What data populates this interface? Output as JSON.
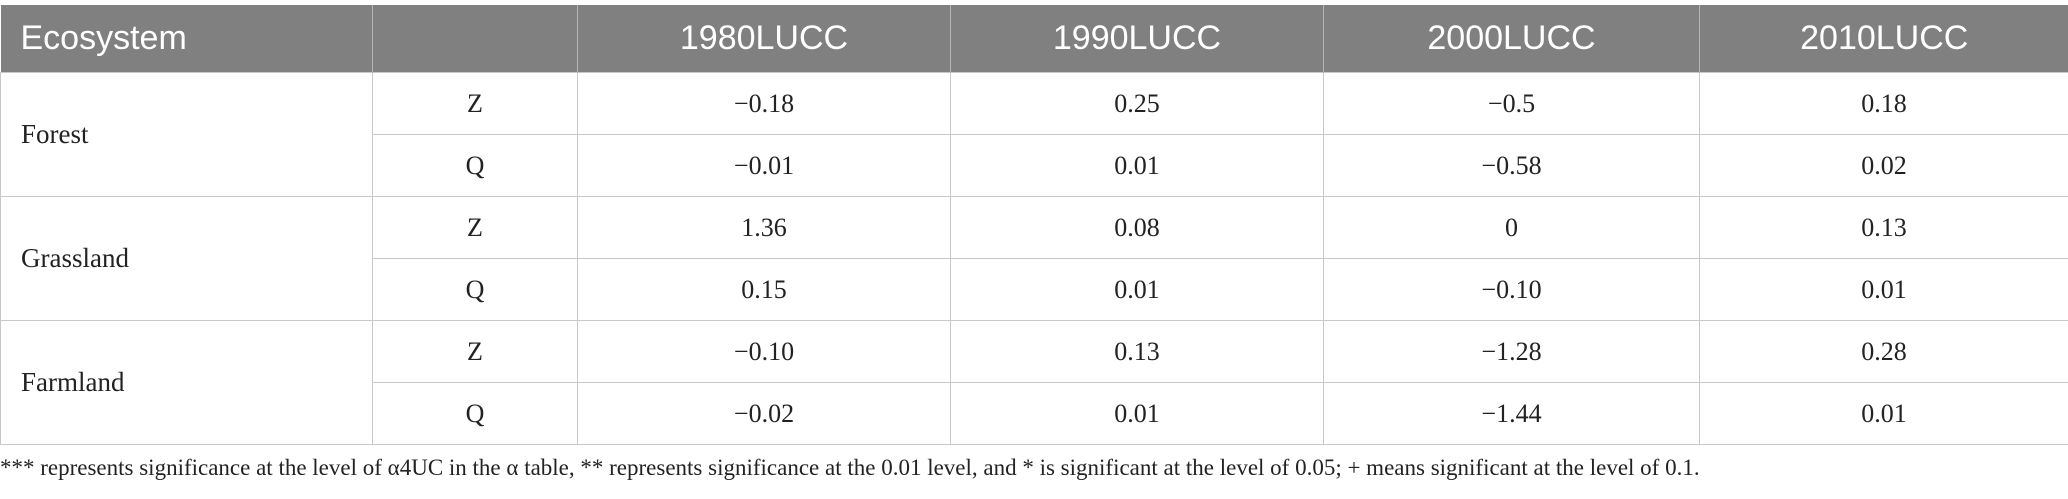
{
  "table": {
    "headers": [
      "Ecosystem",
      "",
      "1980LUCC",
      "1990LUCC",
      "2000LUCC",
      "2010LUCC"
    ],
    "groups": [
      {
        "ecosystem": "Forest",
        "rows": [
          {
            "stat": "Z",
            "values": [
              "−0.18",
              "0.25",
              "−0.5",
              "0.18"
            ]
          },
          {
            "stat": "Q",
            "values": [
              "−0.01",
              "0.01",
              "−0.58",
              "0.02"
            ]
          }
        ]
      },
      {
        "ecosystem": "Grassland",
        "rows": [
          {
            "stat": "Z",
            "values": [
              "1.36",
              "0.08",
              "0",
              "0.13"
            ]
          },
          {
            "stat": "Q",
            "values": [
              "0.15",
              "0.01",
              "−0.10",
              "0.01"
            ]
          }
        ]
      },
      {
        "ecosystem": "Farmland",
        "rows": [
          {
            "stat": "Z",
            "values": [
              "−0.10",
              "0.13",
              "−1.28",
              "0.28"
            ]
          },
          {
            "stat": "Q",
            "values": [
              "−0.02",
              "0.01",
              "−1.44",
              "0.01"
            ]
          }
        ]
      }
    ]
  },
  "footnote": "*** represents significance at the level of α4UC in the α table, ** represents significance at the 0.01 level, and * is significant at the level of 0.05; + means significant at the level of 0.1."
}
